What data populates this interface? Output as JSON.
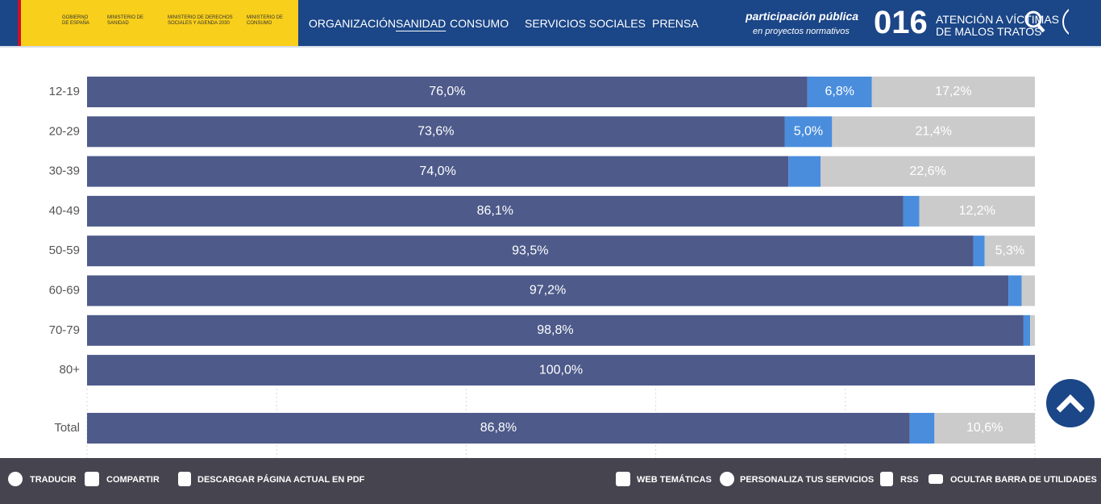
{
  "header": {
    "logos": [
      "GOBIERNO DE ESPAÑA",
      "MINISTERIO DE SANIDAD",
      "MINISTERIO DE DERECHOS SOCIALES Y AGENDA 2030",
      "MINISTERIO DE CONSUMO"
    ],
    "nav": [
      "ORGANIZACIÓN",
      "SANIDAD",
      "CONSUMO",
      "SERVICIOS SOCIALES",
      "PRENSA"
    ],
    "participation": [
      "participación pública",
      "en proyectos normativos"
    ],
    "hotline": {
      "number": "016",
      "lines": [
        "ATENCIÓN A VÍCTIMAS",
        "DE MALOS TRATOS"
      ]
    }
  },
  "chart_data": {
    "type": "stacked-bar",
    "orientation": "horizontal",
    "categories": [
      "12-19",
      "20-29",
      "30-39",
      "40-49",
      "50-59",
      "60-69",
      "70-79",
      "80+",
      "Total"
    ],
    "series": [
      {
        "color": "#4d5a8a",
        "values": [
          76.0,
          73.6,
          74.0,
          86.1,
          93.5,
          97.2,
          98.8,
          100.0,
          86.8
        ],
        "value_labels": [
          "76,0%",
          "73,6%",
          "74,0%",
          "86,1%",
          "93,5%",
          "97,2%",
          "98,8%",
          "100,0%",
          "86,8%"
        ]
      },
      {
        "color": "#4a8ddd",
        "values": [
          6.8,
          5.0,
          3.4,
          1.7,
          1.2,
          1.4,
          0.7,
          0,
          2.6
        ],
        "value_labels": [
          "6,8%",
          "5,0%",
          null,
          null,
          null,
          null,
          null,
          null,
          null
        ]
      },
      {
        "color": "#cbcbcb",
        "values": [
          17.2,
          21.4,
          22.6,
          12.2,
          5.3,
          1.4,
          0.5,
          0,
          10.6
        ],
        "value_labels": [
          "17,2%",
          "21,4%",
          "22,6%",
          "12,2%",
          "5,3%",
          null,
          null,
          null,
          "10,6%"
        ]
      }
    ],
    "xlim": [
      0,
      100
    ],
    "xticks": [
      0,
      20,
      40,
      60,
      80,
      100
    ],
    "grid": true
  },
  "footer": {
    "left": [
      "TRADUCIR",
      "COMPARTIR",
      "DESCARGAR PÁGINA ACTUAL EN PDF"
    ],
    "right": [
      "WEB TEMÁTICAS",
      "PERSONALIZA TUS SERVICIOS",
      "RSS",
      "OCULTAR BARRA DE UTILIDADES"
    ]
  }
}
